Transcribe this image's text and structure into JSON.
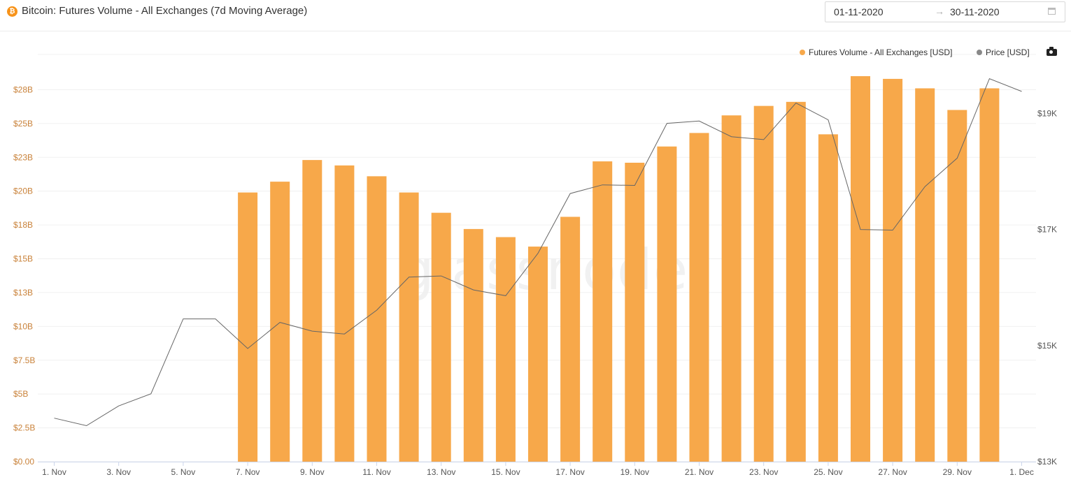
{
  "header": {
    "icon_glyph": "₿",
    "title": "Bitcoin: Futures Volume - All Exchanges (7d Moving Average)",
    "date_from": "01-11-2020",
    "date_arrow": "→",
    "date_to": "30-11-2020"
  },
  "legend": {
    "volume_label": "Futures Volume - All Exchanges [USD]",
    "price_label": "Price [USD]"
  },
  "watermark": "glassnode",
  "colors": {
    "bar": "#f7a84a",
    "price_line": "#666666",
    "left_axis": "#c9823a",
    "legend_price_dot": "#888888"
  },
  "chart_data": {
    "type": "bar",
    "title": "Bitcoin: Futures Volume - All Exchanges (7d Moving Average)",
    "categories": [
      "1 Nov",
      "2 Nov",
      "3 Nov",
      "4 Nov",
      "5 Nov",
      "6 Nov",
      "7 Nov",
      "8 Nov",
      "9 Nov",
      "10 Nov",
      "11 Nov",
      "12 Nov",
      "13 Nov",
      "14 Nov",
      "15 Nov",
      "16 Nov",
      "17 Nov",
      "18 Nov",
      "19 Nov",
      "20 Nov",
      "21 Nov",
      "22 Nov",
      "23 Nov",
      "24 Nov",
      "25 Nov",
      "26 Nov",
      "27 Nov",
      "28 Nov",
      "29 Nov",
      "30 Nov",
      "1 Dec"
    ],
    "x_tick_labels": [
      "1. Nov",
      "3. Nov",
      "5. Nov",
      "7. Nov",
      "9. Nov",
      "11. Nov",
      "13. Nov",
      "15. Nov",
      "17. Nov",
      "19. Nov",
      "21. Nov",
      "23. Nov",
      "25. Nov",
      "27. Nov",
      "29. Nov",
      "1. Dec"
    ],
    "x_tick_indices": [
      0,
      2,
      4,
      6,
      8,
      10,
      12,
      14,
      16,
      18,
      20,
      22,
      24,
      26,
      28,
      30
    ],
    "series": [
      {
        "name": "Futures Volume - All Exchanges [USD]",
        "axis": "left",
        "kind": "bar",
        "unit": "USD billions",
        "values": [
          null,
          null,
          null,
          null,
          null,
          null,
          19.9,
          20.7,
          22.3,
          21.9,
          21.1,
          19.9,
          18.4,
          17.2,
          16.6,
          15.9,
          18.1,
          22.2,
          22.1,
          23.3,
          24.3,
          25.6,
          26.3,
          26.6,
          24.2,
          28.5,
          28.3,
          27.6,
          26.0,
          27.6,
          null
        ]
      },
      {
        "name": "Price [USD]",
        "axis": "right",
        "kind": "line",
        "unit": "USD",
        "values": [
          13750,
          13620,
          13960,
          14170,
          15460,
          15460,
          14950,
          15400,
          15250,
          15200,
          15610,
          16180,
          16200,
          15960,
          15860,
          16590,
          17620,
          17770,
          17760,
          18830,
          18870,
          18600,
          18550,
          19180,
          18890,
          17000,
          16990,
          17740,
          18230,
          19600,
          19380
        ]
      }
    ],
    "ylim_left": [
      0,
      30
    ],
    "yticks_left": [
      "$0.00",
      "$2.5B",
      "$5B",
      "$7.5B",
      "$10B",
      "$13B",
      "$15B",
      "$18B",
      "$20B",
      "$23B",
      "$25B",
      "$28B"
    ],
    "ylim_right": [
      13000,
      19800
    ],
    "yticks_right": [
      "$13K",
      "$15K",
      "$17K",
      "$19K"
    ],
    "grid": true,
    "legend_position": "top-right"
  }
}
